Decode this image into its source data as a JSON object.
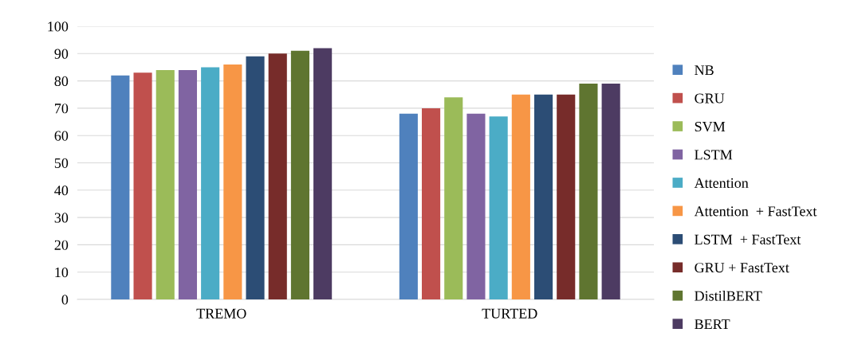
{
  "chart_data": {
    "type": "bar",
    "categories": [
      "TREMO",
      "TURTED"
    ],
    "series": [
      {
        "name": "NB",
        "color": "#4f81bd",
        "values": [
          82,
          68
        ]
      },
      {
        "name": "GRU",
        "color": "#c0504d",
        "values": [
          83,
          70
        ]
      },
      {
        "name": "SVM",
        "color": "#9bbb59",
        "values": [
          84,
          74
        ]
      },
      {
        "name": "LSTM",
        "color": "#8064a2",
        "values": [
          84,
          68
        ]
      },
      {
        "name": "Attention",
        "color": "#4bacc6",
        "values": [
          85,
          67
        ]
      },
      {
        "name": "Attention  + FastText",
        "color": "#f79646",
        "values": [
          86,
          75
        ]
      },
      {
        "name": "LSTM  + FastText",
        "color": "#2c4d75",
        "values": [
          89,
          75
        ]
      },
      {
        "name": "GRU + FastText",
        "color": "#772c2a",
        "values": [
          90,
          75
        ]
      },
      {
        "name": "DistilBERT",
        "color": "#5f7530",
        "values": [
          91,
          79
        ]
      },
      {
        "name": "BERT",
        "color": "#4d3b62",
        "values": [
          92,
          79
        ]
      }
    ],
    "ylim": [
      0,
      100
    ],
    "yticks": [
      0,
      10,
      20,
      30,
      40,
      50,
      60,
      70,
      80,
      90,
      100
    ],
    "grid": "y",
    "legend": "right"
  }
}
